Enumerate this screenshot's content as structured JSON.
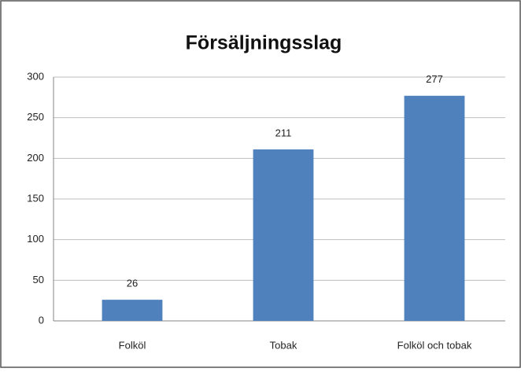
{
  "chart_data": {
    "type": "bar",
    "title": "Försäljningsslag",
    "categories": [
      "Folköl",
      "Tobak",
      "Folköl och tobak"
    ],
    "values": [
      26,
      211,
      277
    ],
    "color": "#4f81bd",
    "ylim": [
      0,
      300
    ],
    "yticks": [
      0,
      50,
      100,
      150,
      200,
      250,
      300
    ],
    "grid": true
  }
}
